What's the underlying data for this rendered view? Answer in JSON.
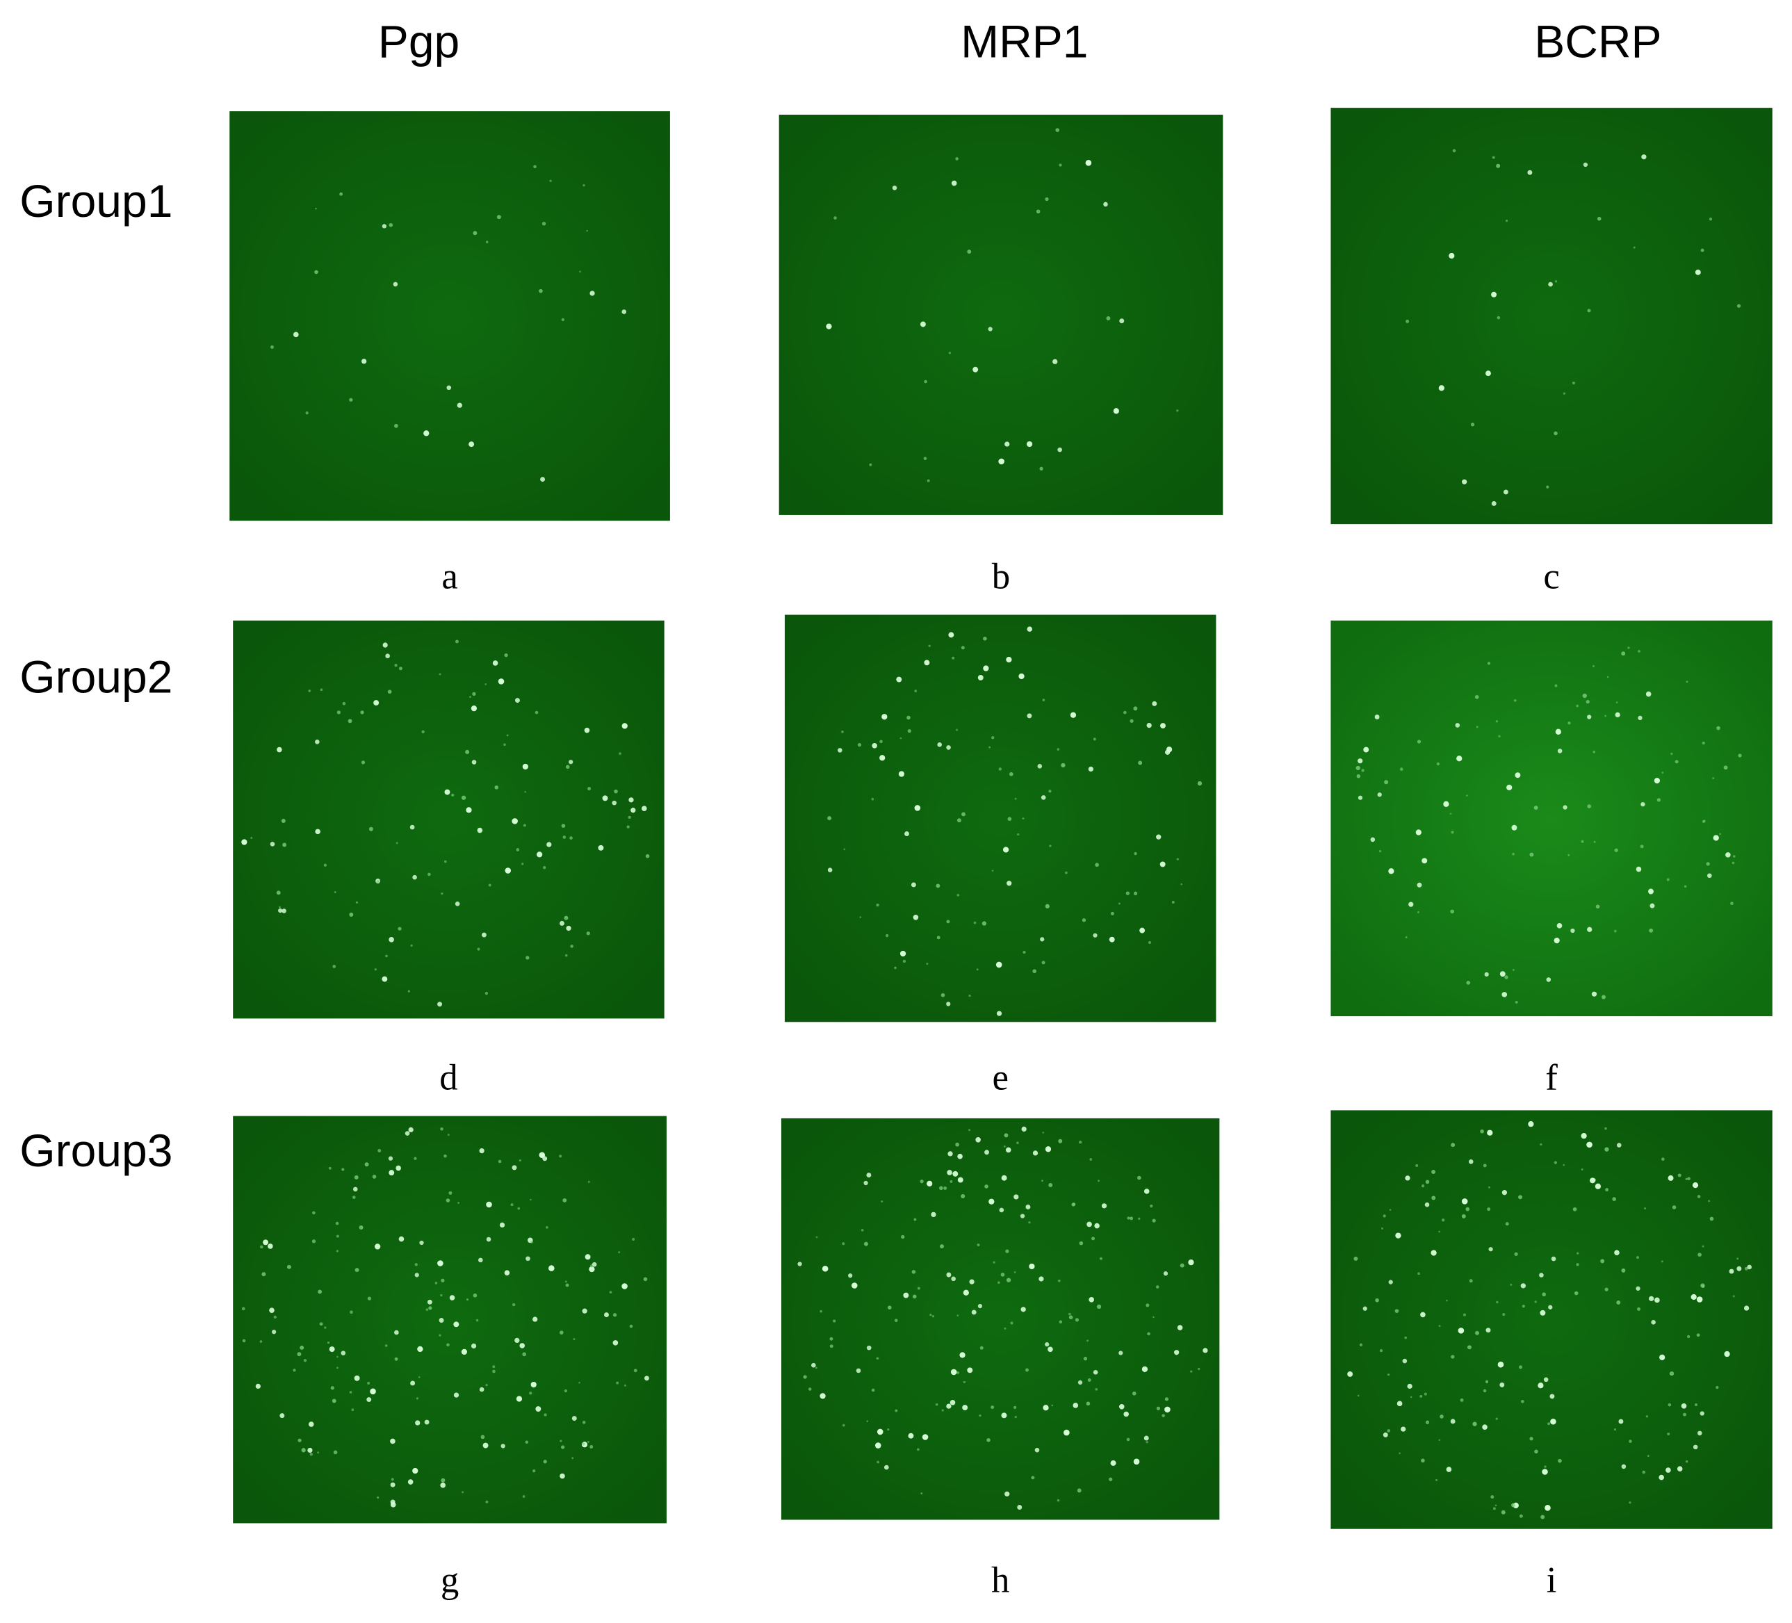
{
  "columns": [
    "Pgp",
    "MRP1",
    "BCRP"
  ],
  "rows": [
    {
      "label": "Group1",
      "panels": [
        "a",
        "b",
        "c"
      ]
    },
    {
      "label": "Group2",
      "panels": [
        "d",
        "e",
        "f"
      ]
    },
    {
      "label": "Group3",
      "panels": [
        "g",
        "h",
        "i"
      ]
    }
  ]
}
